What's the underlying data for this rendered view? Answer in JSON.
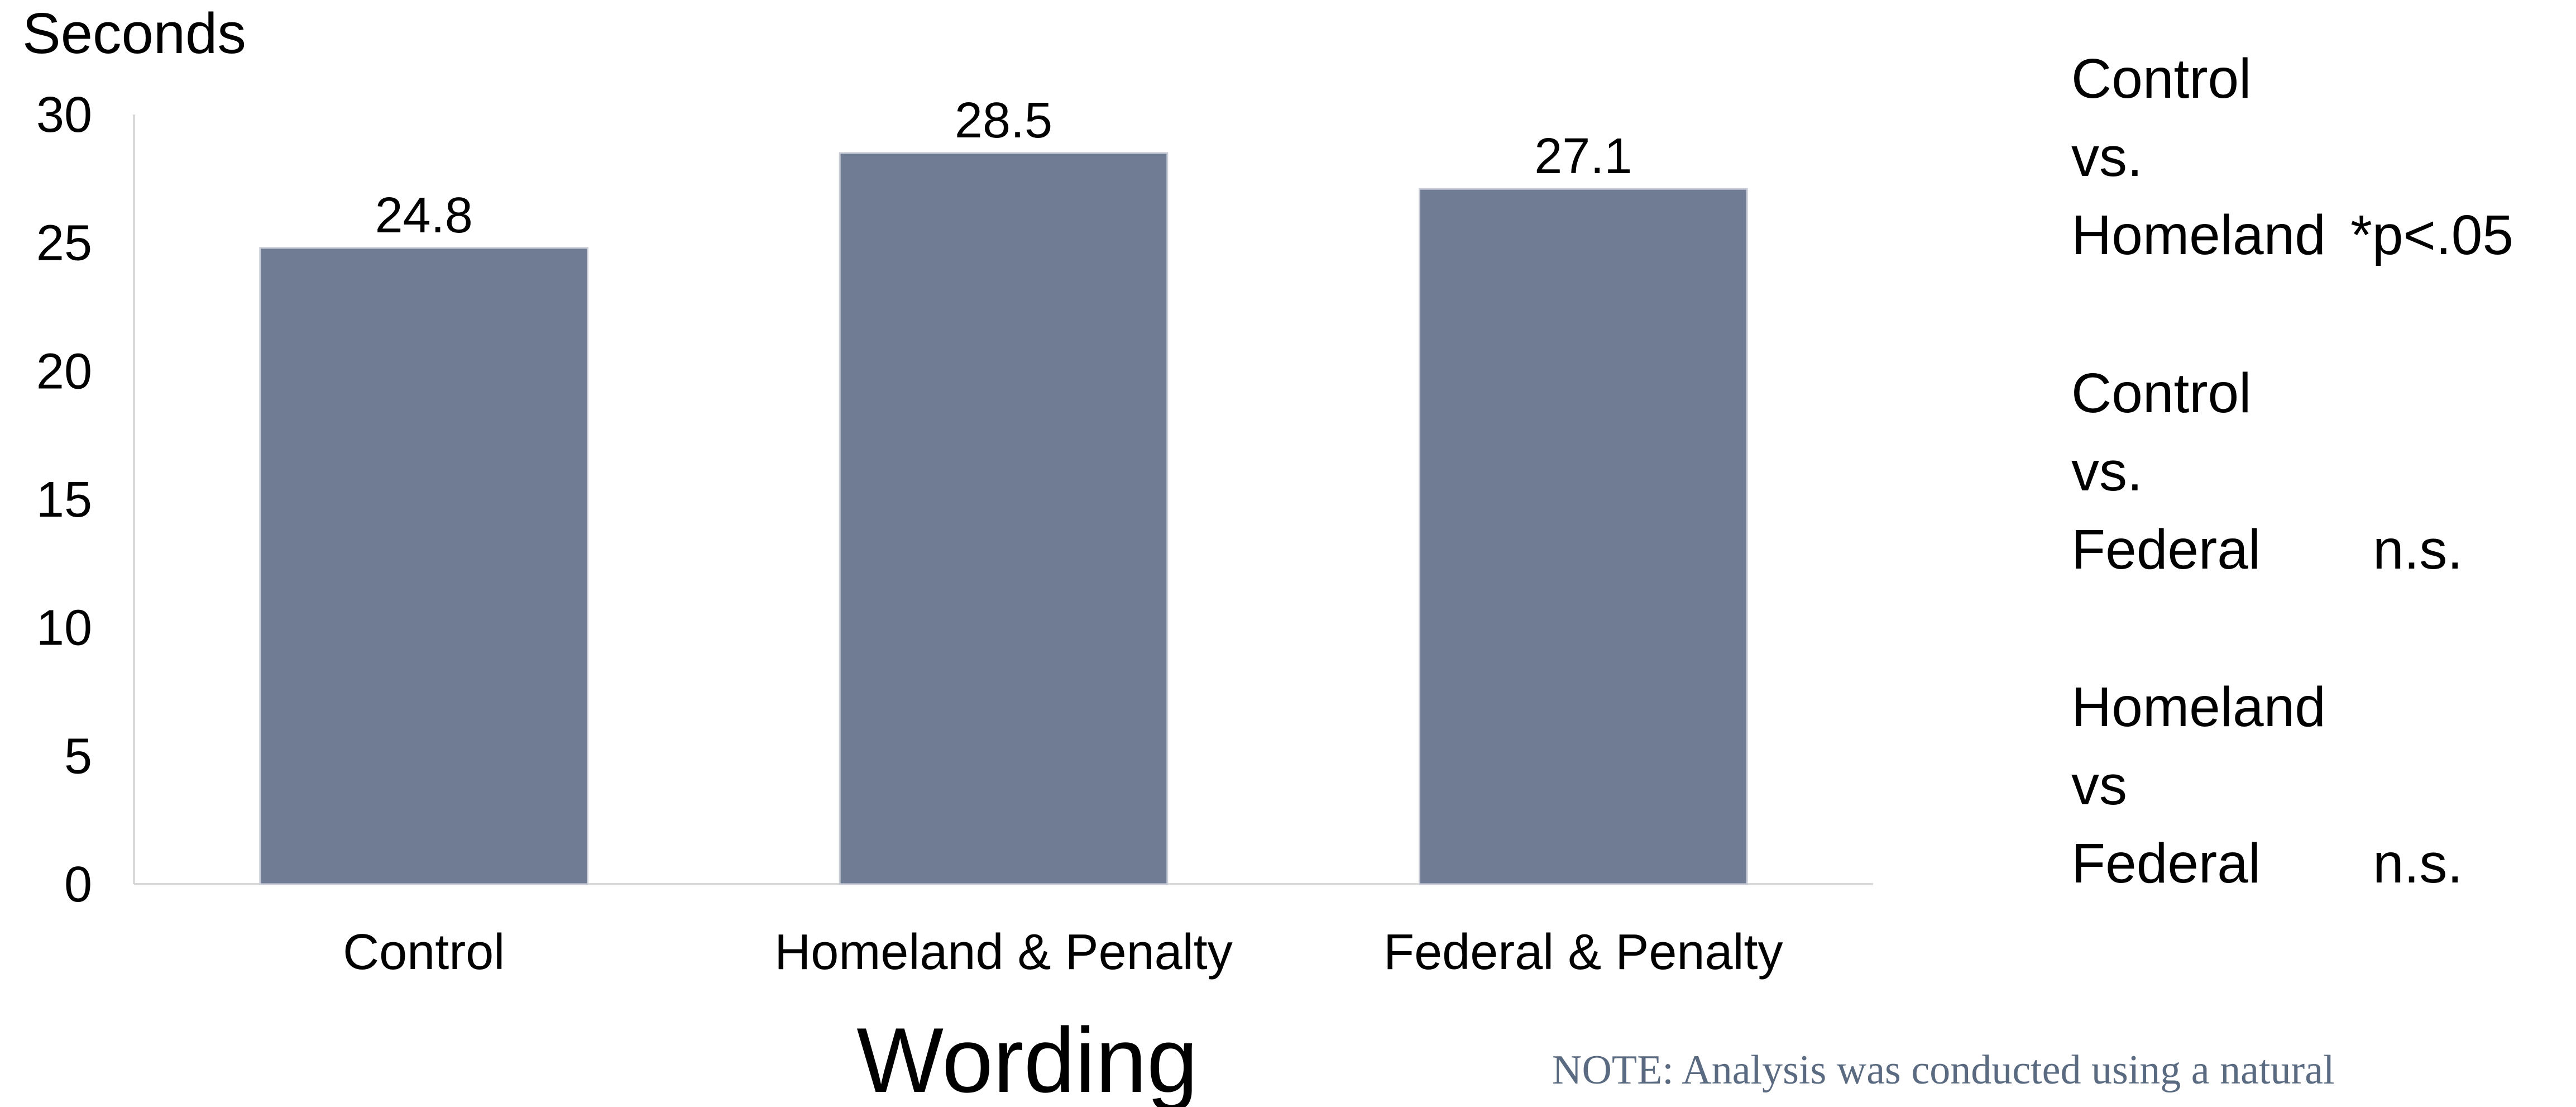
{
  "chart_data": {
    "type": "bar",
    "ylabel": "Seconds",
    "xlabel": "Wording",
    "categories": [
      "Control",
      "Homeland & Penalty",
      "Federal & Penalty"
    ],
    "values": [
      24.8,
      28.5,
      27.1
    ],
    "data_labels": [
      "24.8",
      "28.5",
      "27.1"
    ],
    "ylim": [
      0,
      30
    ],
    "yticks": [
      "0",
      "5",
      "10",
      "15",
      "20",
      "25",
      "30"
    ],
    "bar_color": "#707b94",
    "grid": false,
    "legend": "none"
  },
  "comparisons": [
    {
      "line1": "Control",
      "line2": "vs.",
      "line3": "Homeland",
      "result": "*p<.05",
      "result_color": "#ff0000"
    },
    {
      "line1": "Control",
      "line2": "vs.",
      "line3": "Federal",
      "result": "n.s.",
      "result_color": "#000000"
    },
    {
      "line1": "Homeland",
      "line2": "vs",
      "line3": "Federal",
      "result": "n.s.",
      "result_color": "#000000"
    }
  ],
  "note": "NOTE:  Analysis was conducted using a natural"
}
